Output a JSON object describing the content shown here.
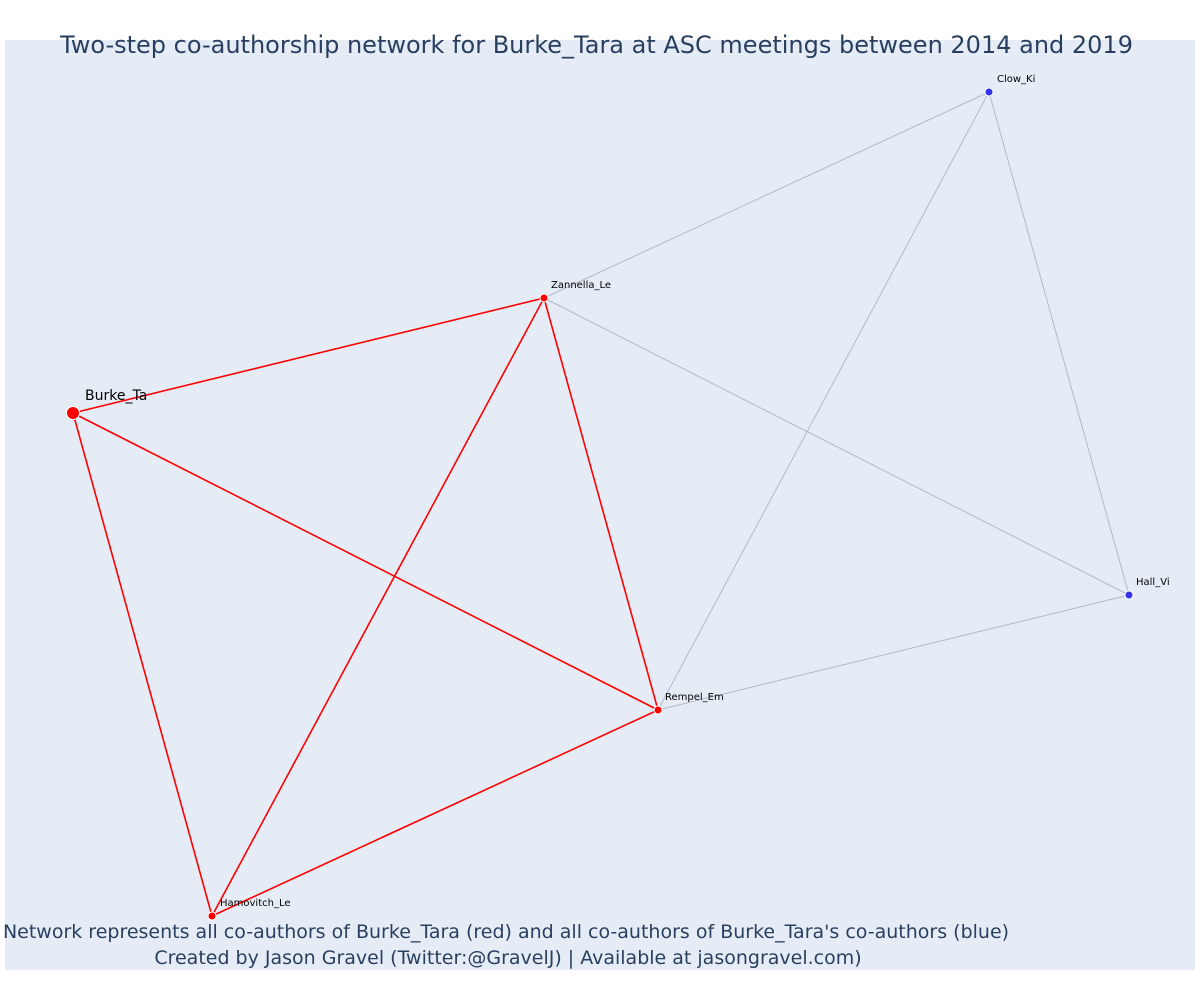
{
  "title": "Two-step co-authorship network for Burke_Tara at ASC meetings between 2014 and 2019",
  "caption": {
    "line1": "Network represents all co-authors of Burke_Tara (red) and all co-authors of Burke_Tara's co-authors (blue)",
    "line2": "Created by Jason Gravel (Twitter:@GravelJ) | Available at jasongravel.com)"
  },
  "colors": {
    "plot_background": "#e5ecf6",
    "focal": "#ff0000",
    "first_step": "#ff0000",
    "second_step": "#3333ee",
    "first_step_edge": "#ff0000",
    "second_step_edge": "#b4b8c8"
  },
  "nodes": [
    {
      "id": "burke",
      "label": "Burke_Ta",
      "group": "focal"
    },
    {
      "id": "zannella",
      "label": "Zannella_Le",
      "group": "first_step"
    },
    {
      "id": "rempel",
      "label": "Rempel_Em",
      "group": "first_step"
    },
    {
      "id": "hamovitch",
      "label": "Hamovitch_Le",
      "group": "first_step"
    },
    {
      "id": "clow",
      "label": "Clow_Ki",
      "group": "second_step"
    },
    {
      "id": "hall",
      "label": "Hall_Vi",
      "group": "second_step"
    }
  ],
  "edges": [
    {
      "source": "burke",
      "target": "zannella",
      "group": "first_step"
    },
    {
      "source": "burke",
      "target": "rempel",
      "group": "first_step"
    },
    {
      "source": "burke",
      "target": "hamovitch",
      "group": "first_step"
    },
    {
      "source": "zannella",
      "target": "rempel",
      "group": "first_step"
    },
    {
      "source": "zannella",
      "target": "hamovitch",
      "group": "first_step"
    },
    {
      "source": "rempel",
      "target": "hamovitch",
      "group": "first_step"
    },
    {
      "source": "zannella",
      "target": "clow",
      "group": "second_step"
    },
    {
      "source": "zannella",
      "target": "hall",
      "group": "second_step"
    },
    {
      "source": "rempel",
      "target": "clow",
      "group": "second_step"
    },
    {
      "source": "rempel",
      "target": "hall",
      "group": "second_step"
    },
    {
      "source": "clow",
      "target": "hall",
      "group": "second_step"
    }
  ]
}
